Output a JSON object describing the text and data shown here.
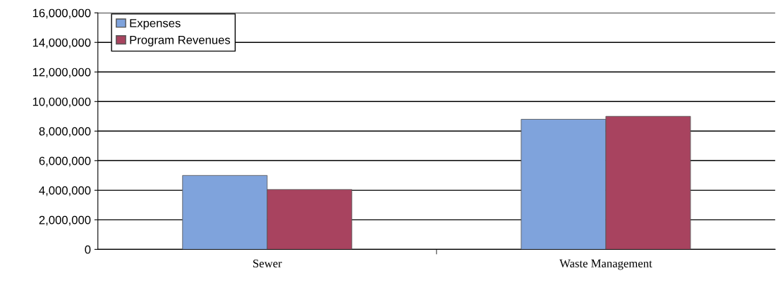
{
  "chart_data": {
    "type": "bar",
    "categories": [
      "Sewer",
      "Waste Management"
    ],
    "series": [
      {
        "name": "Expenses",
        "color": "#7fa3dc",
        "values": [
          5000000,
          8800000
        ]
      },
      {
        "name": "Program Revenues",
        "color": "#a8435f",
        "values": [
          4050000,
          9000000
        ]
      }
    ],
    "ylim": [
      0,
      16000000
    ],
    "yticks": [
      {
        "value": 0,
        "label": "0"
      },
      {
        "value": 2000000,
        "label": "2,000,000"
      },
      {
        "value": 4000000,
        "label": "4,000,000"
      },
      {
        "value": 6000000,
        "label": "6,000,000"
      },
      {
        "value": 8000000,
        "label": "8,000,000"
      },
      {
        "value": 10000000,
        "label": "10,000,000"
      },
      {
        "value": 12000000,
        "label": "12,000,000"
      },
      {
        "value": 14000000,
        "label": "14,000,000"
      },
      {
        "value": 16000000,
        "label": "16,000,000"
      }
    ],
    "grid": "y",
    "legend": "top left"
  }
}
